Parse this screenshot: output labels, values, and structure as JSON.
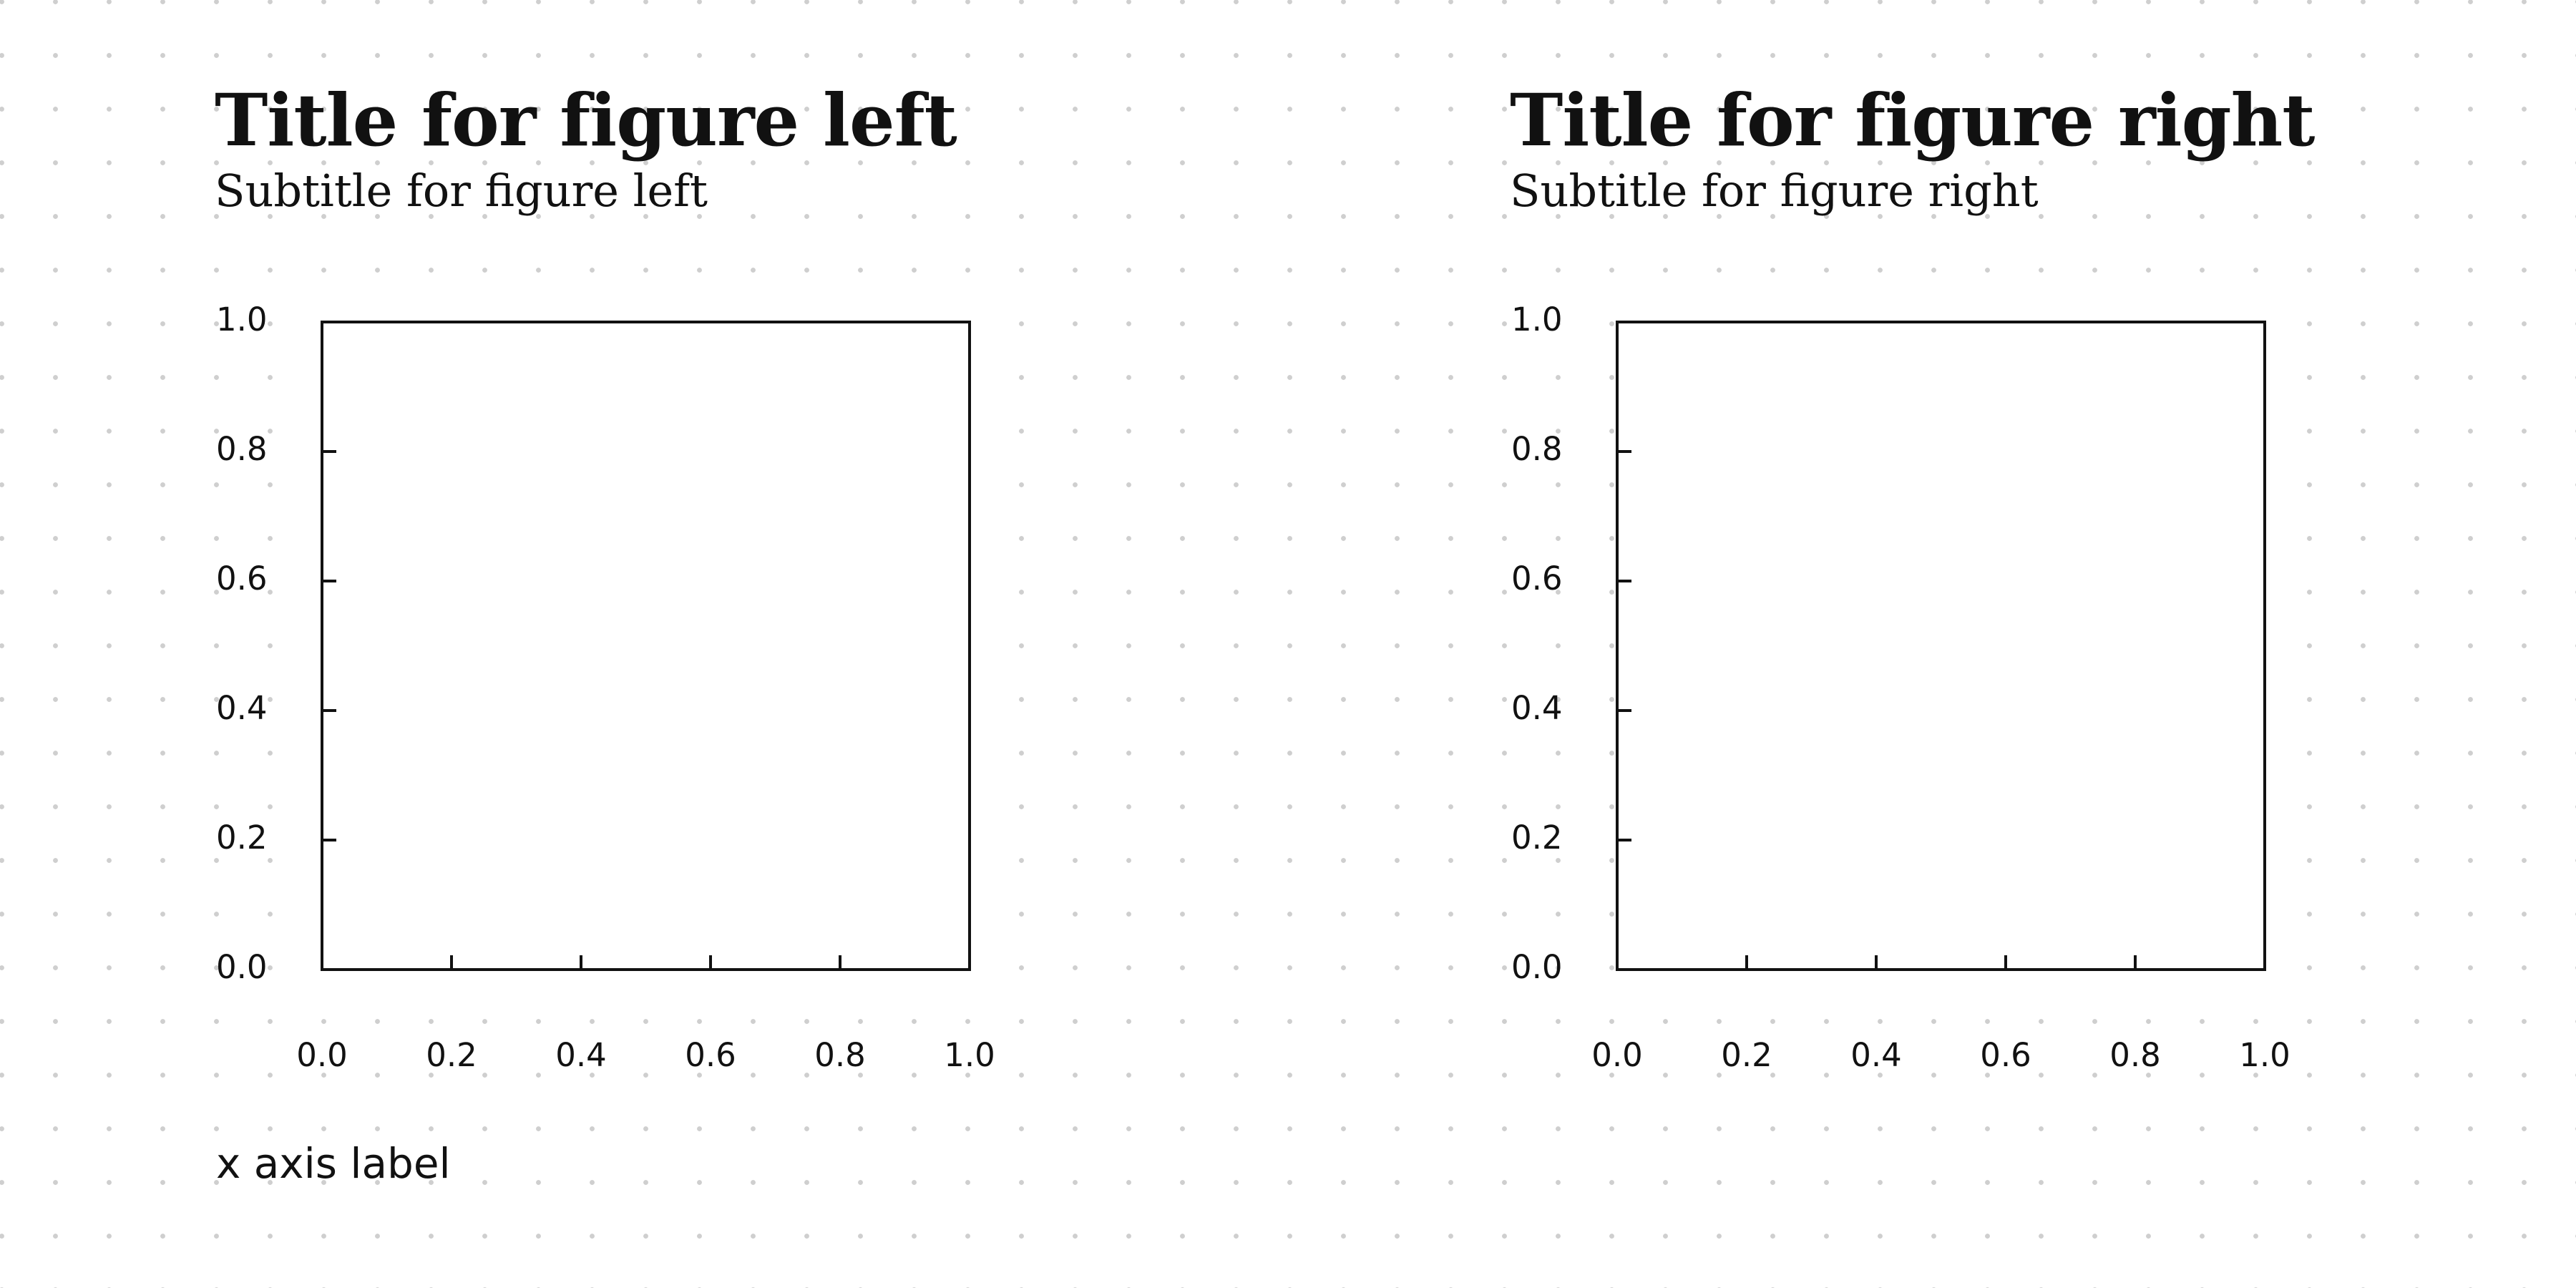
{
  "chart_data": [
    {
      "type": "line",
      "title": "Title for figure left",
      "subtitle": "Subtitle for figure left",
      "xlabel": "x axis label",
      "ylabel": "",
      "xlim": [
        0.0,
        1.0
      ],
      "ylim": [
        0.0,
        1.0
      ],
      "xticks": [
        "0.0",
        "0.2",
        "0.4",
        "0.6",
        "0.8",
        "1.0"
      ],
      "yticks": [
        "0.0",
        "0.2",
        "0.4",
        "0.6",
        "0.8",
        "1.0"
      ],
      "series": [],
      "grid": false,
      "legend": "none"
    },
    {
      "type": "line",
      "title": "Title for figure right",
      "subtitle": "Subtitle for figure right",
      "xlabel": "",
      "ylabel": "",
      "xlim": [
        0.0,
        1.0
      ],
      "ylim": [
        0.0,
        1.0
      ],
      "xticks": [
        "0.0",
        "0.2",
        "0.4",
        "0.6",
        "0.8",
        "1.0"
      ],
      "yticks": [
        "0.0",
        "0.2",
        "0.4",
        "0.6",
        "0.8",
        "1.0"
      ],
      "series": [],
      "grid": false,
      "legend": "none"
    }
  ],
  "colors": {
    "background": "#ffffff",
    "dot_grid": "#cfcfcf",
    "ink": "#111111"
  }
}
